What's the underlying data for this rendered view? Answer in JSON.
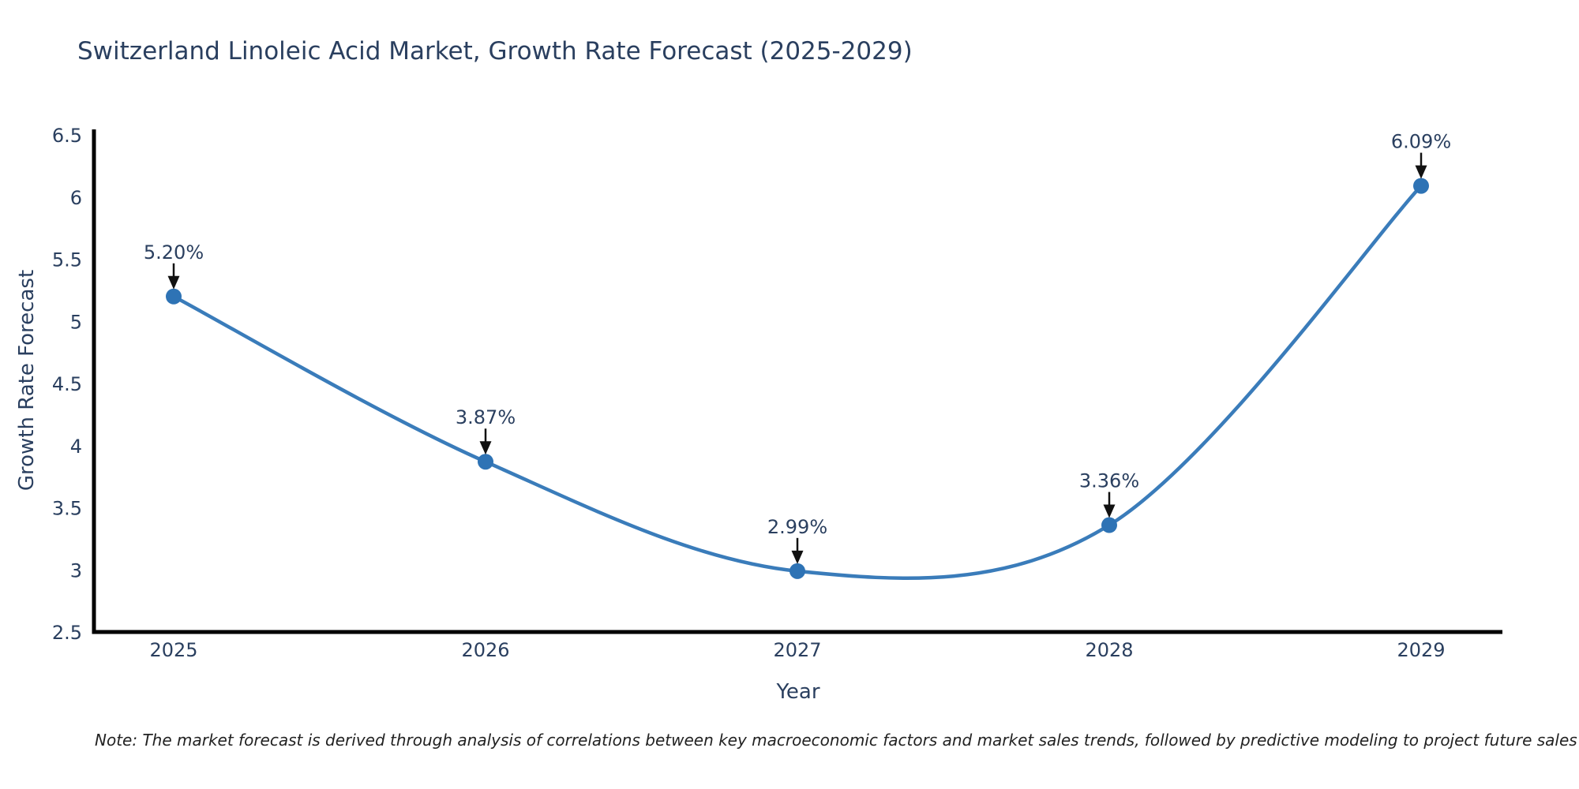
{
  "title": "Switzerland Linoleic Acid Market, Growth Rate Forecast (2025-2029)",
  "note": "Note: The market forecast is derived through analysis of correlations between key macroeconomic factors and market sales trends, followed by predictive modeling to project future sales",
  "chart_data": {
    "type": "line",
    "line_shape": "spline",
    "title": "Switzerland Linoleic Acid Market, Growth Rate Forecast (2025-2029)",
    "xlabel": "Year",
    "ylabel": "Growth Rate Forecast",
    "categories": [
      "2025",
      "2026",
      "2027",
      "2028",
      "2029"
    ],
    "values": [
      5.2,
      3.87,
      2.99,
      3.36,
      6.09
    ],
    "point_labels": [
      "5.20%",
      "3.87%",
      "2.99%",
      "3.36%",
      "6.09%"
    ],
    "ylim": [
      2.5,
      6.5
    ],
    "ytick_labels": [
      "2.5",
      "3",
      "3.5",
      "4",
      "4.5",
      "5",
      "5.5",
      "6",
      "6.5"
    ],
    "yticks": [
      2.5,
      3,
      3.5,
      4,
      4.5,
      5,
      5.5,
      6,
      6.5
    ],
    "grid": false,
    "legend": false,
    "colors": {
      "line": "#3a7cba",
      "marker": "#2e73b5",
      "axis": "#000000",
      "text": "#2a3f5f",
      "annotation_arrow": "#111111",
      "background": "#ffffff"
    }
  }
}
